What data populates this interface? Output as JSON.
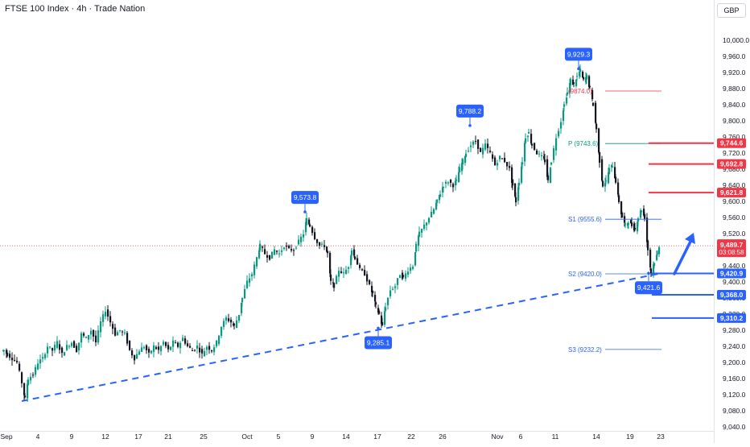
{
  "header": {
    "title": "FTSE 100 Index · 4h · Trade Nation",
    "currency": "GBP"
  },
  "chart_data": {
    "type": "candlestick",
    "title": "FTSE 100 Index · 4h · Trade Nation",
    "currency": "GBP",
    "ylim": [
      9040,
      10040
    ],
    "y_ticks": [
      "10,000.0",
      "9,960.0",
      "9,920.0",
      "9,880.0",
      "9,840.0",
      "9,800.0",
      "9,760.0",
      "9,720.0",
      "9,680.0",
      "9,640.0",
      "9,600.0",
      "9,560.0",
      "9,520.0",
      "9,480.0",
      "9,440.0",
      "9,400.0",
      "9,360.0",
      "9,320.0",
      "9,280.0",
      "9,240.0",
      "9,200.0",
      "9,160.0",
      "9,120.0",
      "9,080.0",
      "9,040.0"
    ],
    "x_ticks": [
      "Sep",
      "4",
      "9",
      "12",
      "17",
      "21",
      "25",
      "Oct",
      "5",
      "9",
      "14",
      "17",
      "22",
      "26",
      "Nov",
      "6",
      "11",
      "14",
      "19",
      "23"
    ],
    "price_path": [
      [
        0,
        9230
      ],
      [
        4,
        9230
      ],
      [
        8,
        9220
      ],
      [
        14,
        9210
      ],
      [
        20,
        9200
      ],
      [
        26,
        9150
      ],
      [
        30,
        9110
      ],
      [
        34,
        9160
      ],
      [
        40,
        9170
      ],
      [
        46,
        9200
      ],
      [
        52,
        9210
      ],
      [
        58,
        9240
      ],
      [
        64,
        9230
      ],
      [
        70,
        9250
      ],
      [
        76,
        9220
      ],
      [
        82,
        9240
      ],
      [
        88,
        9250
      ],
      [
        94,
        9230
      ],
      [
        100,
        9270
      ],
      [
        106,
        9260
      ],
      [
        112,
        9280
      ],
      [
        118,
        9250
      ],
      [
        124,
        9300
      ],
      [
        130,
        9330
      ],
      [
        136,
        9300
      ],
      [
        142,
        9270
      ],
      [
        148,
        9280
      ],
      [
        154,
        9270
      ],
      [
        160,
        9230
      ],
      [
        166,
        9210
      ],
      [
        172,
        9230
      ],
      [
        178,
        9240
      ],
      [
        184,
        9220
      ],
      [
        190,
        9240
      ],
      [
        196,
        9230
      ],
      [
        202,
        9250
      ],
      [
        208,
        9230
      ],
      [
        214,
        9250
      ],
      [
        220,
        9240
      ],
      [
        226,
        9260
      ],
      [
        232,
        9240
      ],
      [
        238,
        9230
      ],
      [
        244,
        9240
      ],
      [
        250,
        9220
      ],
      [
        256,
        9240
      ],
      [
        262,
        9230
      ],
      [
        268,
        9250
      ],
      [
        274,
        9290
      ],
      [
        280,
        9310
      ],
      [
        286,
        9300
      ],
      [
        290,
        9290
      ],
      [
        296,
        9320
      ],
      [
        300,
        9360
      ],
      [
        306,
        9400
      ],
      [
        312,
        9420
      ],
      [
        318,
        9460
      ],
      [
        322,
        9490
      ],
      [
        328,
        9470
      ],
      [
        334,
        9460
      ],
      [
        340,
        9480
      ],
      [
        346,
        9470
      ],
      [
        352,
        9490
      ],
      [
        358,
        9480
      ],
      [
        364,
        9480
      ],
      [
        370,
        9500
      ],
      [
        376,
        9520
      ],
      [
        380,
        9555
      ],
      [
        384,
        9540
      ],
      [
        390,
        9510
      ],
      [
        396,
        9490
      ],
      [
        402,
        9490
      ],
      [
        406,
        9470
      ],
      [
        410,
        9400
      ],
      [
        414,
        9390
      ],
      [
        420,
        9430
      ],
      [
        426,
        9420
      ],
      [
        432,
        9440
      ],
      [
        436,
        9480
      ],
      [
        440,
        9460
      ],
      [
        446,
        9430
      ],
      [
        452,
        9420
      ],
      [
        458,
        9390
      ],
      [
        462,
        9370
      ],
      [
        466,
        9340
      ],
      [
        470,
        9320
      ],
      [
        474,
        9290
      ],
      [
        478,
        9340
      ],
      [
        484,
        9380
      ],
      [
        490,
        9390
      ],
      [
        496,
        9420
      ],
      [
        500,
        9410
      ],
      [
        506,
        9430
      ],
      [
        512,
        9440
      ],
      [
        516,
        9490
      ],
      [
        520,
        9520
      ],
      [
        526,
        9540
      ],
      [
        532,
        9560
      ],
      [
        538,
        9580
      ],
      [
        542,
        9600
      ],
      [
        546,
        9620
      ],
      [
        550,
        9640
      ],
      [
        556,
        9650
      ],
      [
        562,
        9640
      ],
      [
        566,
        9650
      ],
      [
        570,
        9680
      ],
      [
        574,
        9700
      ],
      [
        578,
        9720
      ],
      [
        584,
        9740
      ],
      [
        590,
        9750
      ],
      [
        596,
        9720
      ],
      [
        602,
        9740
      ],
      [
        608,
        9720
      ],
      [
        614,
        9690
      ],
      [
        620,
        9710
      ],
      [
        626,
        9700
      ],
      [
        632,
        9680
      ],
      [
        636,
        9640
      ],
      [
        640,
        9600
      ],
      [
        644,
        9650
      ],
      [
        648,
        9700
      ],
      [
        652,
        9760
      ],
      [
        656,
        9770
      ],
      [
        660,
        9740
      ],
      [
        666,
        9720
      ],
      [
        672,
        9710
      ],
      [
        676,
        9700
      ],
      [
        680,
        9650
      ],
      [
        684,
        9700
      ],
      [
        690,
        9760
      ],
      [
        696,
        9800
      ],
      [
        700,
        9840
      ],
      [
        704,
        9870
      ],
      [
        708,
        9900
      ],
      [
        712,
        9890
      ],
      [
        716,
        9910
      ],
      [
        720,
        9925
      ],
      [
        724,
        9900
      ],
      [
        728,
        9910
      ],
      [
        732,
        9880
      ],
      [
        736,
        9840
      ],
      [
        740,
        9780
      ],
      [
        744,
        9700
      ],
      [
        748,
        9640
      ],
      [
        752,
        9650
      ],
      [
        756,
        9680
      ],
      [
        760,
        9690
      ],
      [
        764,
        9650
      ],
      [
        768,
        9600
      ],
      [
        772,
        9560
      ],
      [
        776,
        9540
      ],
      [
        780,
        9550
      ],
      [
        784,
        9540
      ],
      [
        788,
        9530
      ],
      [
        792,
        9560
      ],
      [
        796,
        9580
      ],
      [
        800,
        9560
      ],
      [
        804,
        9480
      ],
      [
        808,
        9423
      ],
      [
        812,
        9450
      ],
      [
        816,
        9470
      ],
      [
        818,
        9490
      ]
    ],
    "trendline": {
      "from": [
        27,
        9104
      ],
      "to": [
        818,
        9420
      ],
      "style": "dashed"
    },
    "swing_labels": [
      {
        "x": 719,
        "value": 9929.3,
        "label": "9,929.3",
        "anchor": "above"
      },
      {
        "x": 584,
        "value": 9788.2,
        "label": "9,788.2",
        "anchor": "above"
      },
      {
        "x": 379,
        "value": 9573.8,
        "label": "9,573.8",
        "anchor": "above"
      },
      {
        "x": 470,
        "value": 9285.1,
        "label": "9,285.1",
        "anchor": "below"
      },
      {
        "x": 806,
        "value": 9421.6,
        "label": "9,421.6",
        "anchor": "below"
      }
    ],
    "pivot_levels": [
      {
        "name": "R1",
        "value": 9874.0,
        "label": "(9874.0)",
        "color": "#f23645",
        "show_name": false
      },
      {
        "name": "P",
        "value": 9743.6,
        "label": "P (9743.6)",
        "color": "#089981",
        "show_name": true
      },
      {
        "name": "S1",
        "value": 9555.6,
        "label": "S1 (9555.6)",
        "color": "#2962ff",
        "show_name": true
      },
      {
        "name": "S2",
        "value": 9420.0,
        "label": "S2 (9420.0)",
        "color": "#2962ff",
        "show_name": true
      },
      {
        "name": "S3",
        "value": 9232.2,
        "label": "S3 (9232.2)",
        "color": "#2962ff",
        "show_name": true
      }
    ],
    "resistance_levels": [
      {
        "value": 9744.6,
        "label": "9,744.6"
      },
      {
        "value": 9692.8,
        "label": "9,692.8"
      },
      {
        "value": 9621.8,
        "label": "9,621.8"
      }
    ],
    "support_levels": [
      {
        "value": 9420.9,
        "label": "9,420.9"
      },
      {
        "value": 9368.0,
        "label": "9,368.0"
      },
      {
        "value": 9310.2,
        "label": "9,310.2"
      }
    ],
    "current_price": {
      "value": 9489.7,
      "label": "9,489.7",
      "countdown": "03:08:58"
    },
    "projection_arrow": {
      "from": [
        838,
        9420
      ],
      "to": [
        862,
        9522
      ]
    },
    "colors": {
      "up": "#089981",
      "down": "#131722",
      "resistance": "#f23645",
      "support": "#2962ff",
      "trend": "#2962ff",
      "price_line": "#f23645"
    }
  }
}
